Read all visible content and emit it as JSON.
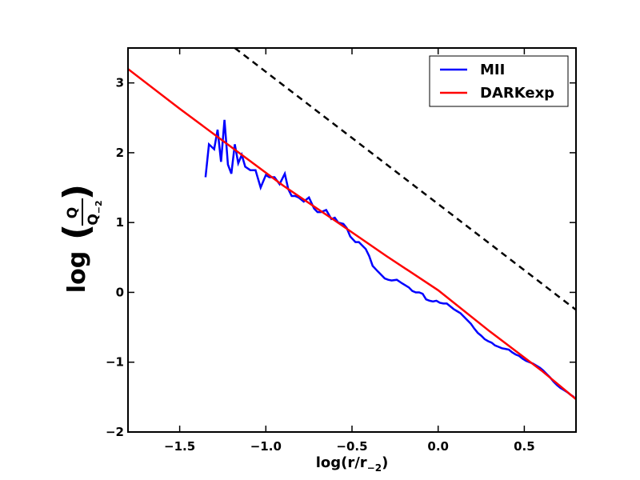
{
  "chart_data": {
    "type": "line",
    "xlabel": "log(r/r_{-2})",
    "ylabel": "log(Q/Q_{-2})",
    "xlim": [
      -1.8,
      0.8
    ],
    "ylim": [
      -2,
      3.5
    ],
    "xticks": [
      -1.5,
      -1.0,
      -0.5,
      0.0,
      0.5
    ],
    "xtick_labels": [
      "−1.5",
      "−1.0",
      "−0.5",
      "0.0",
      "0.5"
    ],
    "yticks": [
      -2,
      -1,
      0,
      1,
      2,
      3
    ],
    "ytick_labels": [
      "−2",
      "−1",
      "0",
      "1",
      "2",
      "3"
    ],
    "legend": {
      "placement": "top-right",
      "entries": [
        "MII",
        "DARKexp"
      ]
    },
    "grid": false,
    "series": [
      {
        "name": "MII",
        "color": "#0000ff",
        "style": "solid",
        "x": [
          -1.35,
          -1.33,
          -1.3,
          -1.28,
          -1.26,
          -1.24,
          -1.22,
          -1.2,
          -1.18,
          -1.16,
          -1.14,
          -1.12,
          -1.09,
          -1.06,
          -1.03,
          -1.0,
          -0.98,
          -0.95,
          -0.92,
          -0.89,
          -0.87,
          -0.85,
          -0.83,
          -0.81,
          -0.78,
          -0.75,
          -0.72,
          -0.7,
          -0.68,
          -0.65,
          -0.62,
          -0.6,
          -0.58,
          -0.55,
          -0.53,
          -0.51,
          -0.48,
          -0.46,
          -0.44,
          -0.42,
          -0.4,
          -0.38,
          -0.35,
          -0.33,
          -0.31,
          -0.29,
          -0.27,
          -0.24,
          -0.21,
          -0.19,
          -0.17,
          -0.15,
          -0.13,
          -0.11,
          -0.09,
          -0.07,
          -0.05,
          -0.03,
          -0.01,
          0.01,
          0.03,
          0.05,
          0.07,
          0.09,
          0.11,
          0.13,
          0.15,
          0.17,
          0.19,
          0.21,
          0.23,
          0.25,
          0.27,
          0.29,
          0.31,
          0.33,
          0.35,
          0.37,
          0.39,
          0.41,
          0.43,
          0.45,
          0.47,
          0.49,
          0.51,
          0.53,
          0.55,
          0.57,
          0.59,
          0.61,
          0.63,
          0.65,
          0.67,
          0.69,
          0.71,
          0.73,
          0.75,
          0.77,
          0.79
        ],
        "y": [
          1.65,
          2.12,
          2.05,
          2.33,
          1.87,
          2.47,
          1.83,
          1.7,
          2.12,
          1.85,
          1.97,
          1.8,
          1.75,
          1.75,
          1.5,
          1.68,
          1.65,
          1.65,
          1.55,
          1.7,
          1.48,
          1.38,
          1.38,
          1.36,
          1.3,
          1.36,
          1.2,
          1.15,
          1.15,
          1.18,
          1.05,
          1.07,
          1.0,
          0.98,
          0.92,
          0.8,
          0.72,
          0.72,
          0.67,
          0.62,
          0.52,
          0.38,
          0.3,
          0.25,
          0.2,
          0.18,
          0.17,
          0.18,
          0.13,
          0.1,
          0.07,
          0.02,
          0.0,
          0.0,
          -0.02,
          -0.1,
          -0.12,
          -0.13,
          -0.12,
          -0.15,
          -0.16,
          -0.16,
          -0.2,
          -0.24,
          -0.27,
          -0.3,
          -0.35,
          -0.4,
          -0.45,
          -0.52,
          -0.58,
          -0.62,
          -0.67,
          -0.7,
          -0.72,
          -0.76,
          -0.78,
          -0.8,
          -0.81,
          -0.82,
          -0.86,
          -0.89,
          -0.91,
          -0.95,
          -0.98,
          -1.0,
          -1.02,
          -1.05,
          -1.08,
          -1.12,
          -1.17,
          -1.22,
          -1.28,
          -1.33,
          -1.37,
          -1.4,
          -1.43,
          -1.47,
          -1.5
        ]
      },
      {
        "name": "DARKexp",
        "color": "#ff0000",
        "style": "solid",
        "x": [
          -1.8,
          -1.5,
          -1.2,
          -0.9,
          -0.6,
          -0.3,
          0.0,
          0.3,
          0.6,
          0.8
        ],
        "y": [
          3.2,
          2.63,
          2.08,
          1.53,
          1.03,
          0.52,
          0.03,
          -0.56,
          -1.12,
          -1.53
        ]
      },
      {
        "name": "",
        "color": "#000000",
        "style": "dashed",
        "x": [
          -1.18,
          0.8
        ],
        "y": [
          3.5,
          -0.25
        ]
      }
    ]
  }
}
